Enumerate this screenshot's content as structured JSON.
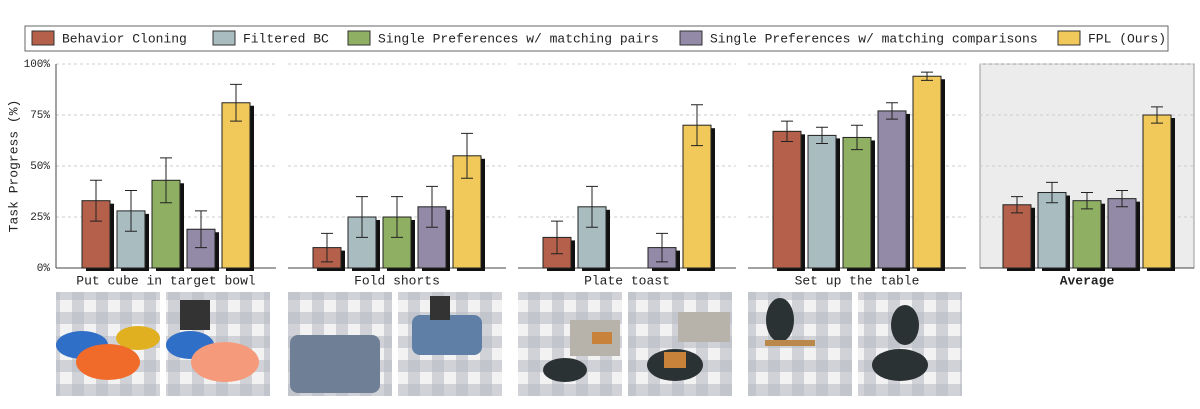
{
  "chart_data": [
    {
      "type": "bar",
      "title": "Put cube in target bowl",
      "ylabel": "Task Progress (%)",
      "ylim": [
        0,
        100
      ],
      "yticks": [
        {
          "value": 0,
          "label": "0%"
        },
        {
          "value": 25,
          "label": "25%"
        },
        {
          "value": 50,
          "label": "50%"
        },
        {
          "value": 75,
          "label": "75%"
        },
        {
          "value": 100,
          "label": "100%"
        }
      ],
      "grid": true,
      "series": [
        {
          "name": "Behavior Cloning",
          "color": "#b5604a",
          "values": [
            33
          ],
          "errors": [
            10
          ]
        },
        {
          "name": "Filtered BC",
          "color": "#a9bcc0",
          "values": [
            28
          ],
          "errors": [
            10
          ]
        },
        {
          "name": "Single Preferences w/ matching pairs",
          "color": "#8fb063",
          "values": [
            43
          ],
          "errors": [
            11
          ]
        },
        {
          "name": "Single Preferences w/ matching comparisons",
          "color": "#928aa6",
          "values": [
            19
          ],
          "errors": [
            9
          ]
        },
        {
          "name": "FPL (Ours)",
          "color": "#f0c95a",
          "values": [
            81
          ],
          "errors": [
            9
          ]
        }
      ]
    },
    {
      "type": "bar",
      "title": "Fold shorts",
      "ylim": [
        0,
        100
      ],
      "series": [
        {
          "values": [
            10
          ],
          "errors": [
            7
          ]
        },
        {
          "values": [
            25
          ],
          "errors": [
            10
          ]
        },
        {
          "values": [
            25
          ],
          "errors": [
            10
          ]
        },
        {
          "values": [
            30
          ],
          "errors": [
            10
          ]
        },
        {
          "values": [
            55
          ],
          "errors": [
            11
          ]
        }
      ]
    },
    {
      "type": "bar",
      "title": "Plate toast",
      "ylim": [
        0,
        100
      ],
      "series": [
        {
          "values": [
            15
          ],
          "errors": [
            8
          ]
        },
        {
          "values": [
            30
          ],
          "errors": [
            10
          ]
        },
        {
          "values": [
            0
          ],
          "errors": [
            0
          ]
        },
        {
          "values": [
            10
          ],
          "errors": [
            7
          ]
        },
        {
          "values": [
            70
          ],
          "errors": [
            10
          ]
        }
      ]
    },
    {
      "type": "bar",
      "title": "Set up the table",
      "ylim": [
        0,
        100
      ],
      "series": [
        {
          "values": [
            67
          ],
          "errors": [
            5
          ]
        },
        {
          "values": [
            65
          ],
          "errors": [
            4
          ]
        },
        {
          "values": [
            64
          ],
          "errors": [
            6
          ]
        },
        {
          "values": [
            77
          ],
          "errors": [
            4
          ]
        },
        {
          "values": [
            94
          ],
          "errors": [
            2
          ]
        }
      ]
    },
    {
      "type": "bar",
      "title": "Average",
      "ylim": [
        0,
        100
      ],
      "highlight": true,
      "series": [
        {
          "values": [
            31
          ],
          "errors": [
            4
          ]
        },
        {
          "values": [
            37
          ],
          "errors": [
            5
          ]
        },
        {
          "values": [
            33
          ],
          "errors": [
            4
          ]
        },
        {
          "values": [
            34
          ],
          "errors": [
            4
          ]
        },
        {
          "values": [
            75
          ],
          "errors": [
            4
          ]
        }
      ]
    }
  ]
}
